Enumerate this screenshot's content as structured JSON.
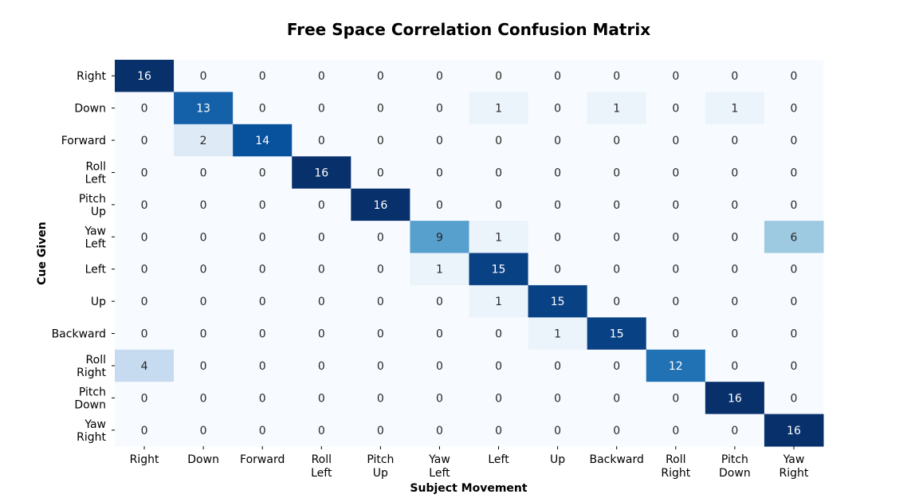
{
  "chart_data": {
    "type": "heatmap",
    "title": "Free Space Correlation Confusion Matrix",
    "xlabel": "Subject Movement",
    "ylabel": "Cue Given",
    "x_categories": [
      [
        "Right"
      ],
      [
        "Down"
      ],
      [
        "Forward"
      ],
      [
        "Roll",
        "Left"
      ],
      [
        "Pitch",
        "Up"
      ],
      [
        "Yaw",
        "Left"
      ],
      [
        "Left"
      ],
      [
        "Up"
      ],
      [
        "Backward"
      ],
      [
        "Roll",
        "Right"
      ],
      [
        "Pitch",
        "Down"
      ],
      [
        "Yaw",
        "Right"
      ]
    ],
    "y_categories": [
      [
        "Right"
      ],
      [
        "Down"
      ],
      [
        "Forward"
      ],
      [
        "Roll",
        "Left"
      ],
      [
        "Pitch",
        "Up"
      ],
      [
        "Yaw",
        "Left"
      ],
      [
        "Left"
      ],
      [
        "Up"
      ],
      [
        "Backward"
      ],
      [
        "Roll",
        "Right"
      ],
      [
        "Pitch",
        "Down"
      ],
      [
        "Yaw",
        "Right"
      ]
    ],
    "values": [
      [
        16,
        0,
        0,
        0,
        0,
        0,
        0,
        0,
        0,
        0,
        0,
        0
      ],
      [
        0,
        13,
        0,
        0,
        0,
        0,
        1,
        0,
        1,
        0,
        1,
        0
      ],
      [
        0,
        2,
        14,
        0,
        0,
        0,
        0,
        0,
        0,
        0,
        0,
        0
      ],
      [
        0,
        0,
        0,
        16,
        0,
        0,
        0,
        0,
        0,
        0,
        0,
        0
      ],
      [
        0,
        0,
        0,
        0,
        16,
        0,
        0,
        0,
        0,
        0,
        0,
        0
      ],
      [
        0,
        0,
        0,
        0,
        0,
        9,
        1,
        0,
        0,
        0,
        0,
        6
      ],
      [
        0,
        0,
        0,
        0,
        0,
        1,
        15,
        0,
        0,
        0,
        0,
        0
      ],
      [
        0,
        0,
        0,
        0,
        0,
        0,
        1,
        15,
        0,
        0,
        0,
        0
      ],
      [
        0,
        0,
        0,
        0,
        0,
        0,
        0,
        1,
        15,
        0,
        0,
        0
      ],
      [
        4,
        0,
        0,
        0,
        0,
        0,
        0,
        0,
        0,
        12,
        0,
        0
      ],
      [
        0,
        0,
        0,
        0,
        0,
        0,
        0,
        0,
        0,
        0,
        16,
        0
      ],
      [
        0,
        0,
        0,
        0,
        0,
        0,
        0,
        0,
        0,
        0,
        0,
        16
      ]
    ],
    "vmin": 0,
    "vmax": 16,
    "colormap": "Blues",
    "colorbar": false,
    "annotations": true
  }
}
